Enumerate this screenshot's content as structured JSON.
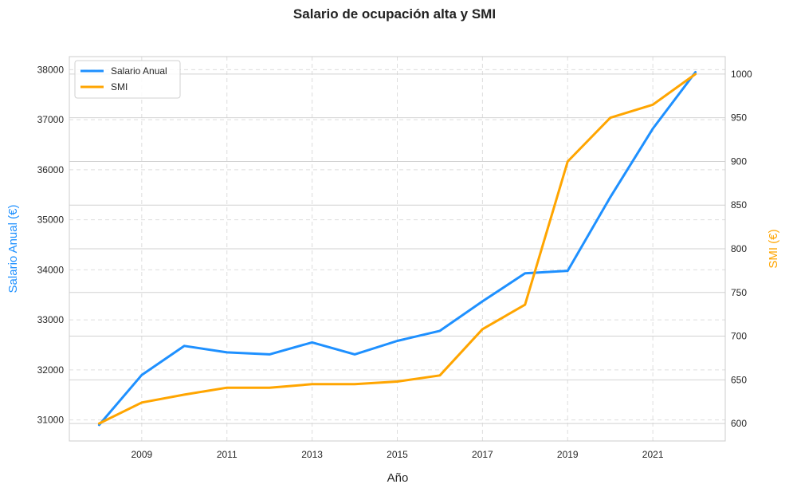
{
  "chart_data": {
    "type": "line",
    "title": "Salario de ocupación alta y SMI",
    "xlabel": "Año",
    "ylabel_left": "Salario Anual (€)",
    "ylabel_right": "SMI (€)",
    "x": [
      2008,
      2009,
      2010,
      2011,
      2012,
      2013,
      2014,
      2015,
      2016,
      2017,
      2018,
      2019,
      2020,
      2021,
      2022
    ],
    "x_ticks": [
      2009,
      2011,
      2013,
      2015,
      2017,
      2019,
      2021
    ],
    "x_lim": [
      2007.3,
      2022.7
    ],
    "series": [
      {
        "name": "Salario Anual",
        "axis": "left",
        "color": "#1E90FF",
        "values": [
          30900,
          31900,
          32480,
          32350,
          32310,
          32550,
          32310,
          32580,
          32780,
          33370,
          33930,
          33980,
          35450,
          36820,
          37950
        ]
      },
      {
        "name": "SMI",
        "axis": "right",
        "color": "#FFA500",
        "values": [
          600,
          624,
          633,
          641,
          641,
          645,
          645,
          648,
          655,
          708,
          736,
          900,
          950,
          965,
          1000
        ]
      }
    ],
    "left_axis": {
      "lim": [
        30580,
        38260
      ],
      "ticks": [
        31000,
        32000,
        33000,
        34000,
        35000,
        36000,
        37000,
        38000
      ]
    },
    "right_axis": {
      "lim": [
        580,
        1020
      ],
      "ticks": [
        600,
        650,
        700,
        750,
        800,
        850,
        900,
        950,
        1000
      ]
    },
    "grid": true,
    "legend_position": "top-left"
  }
}
